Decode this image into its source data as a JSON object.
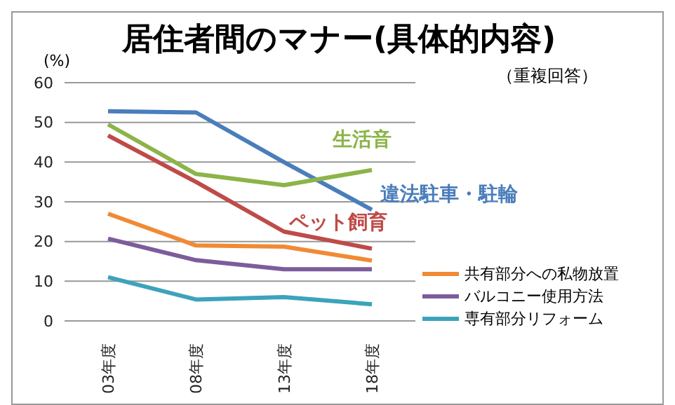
{
  "chart_data": {
    "type": "line",
    "title": "居住者間のマナー(具体的内容)",
    "subtitle": "（重複回答）",
    "ylabel": "(%)",
    "categories": [
      "03年度",
      "08年度",
      "13年度",
      "18年度"
    ],
    "series": [
      {
        "color": "#4a7ebb",
        "values": [
          52.8,
          52.5,
          40,
          28
        ]
      },
      {
        "color": "#8cb449",
        "values": [
          49.5,
          37,
          34.2,
          38
        ]
      },
      {
        "color": "#be4b48",
        "values": [
          46.7,
          35,
          22.5,
          18.2
        ]
      },
      {
        "name": "共有部分への私物放置",
        "color": "#f08a35",
        "values": [
          27,
          19,
          18.7,
          15.2
        ]
      },
      {
        "name": "バルコニー使用方法",
        "color": "#7d5c9c",
        "values": [
          20.7,
          15.3,
          13,
          13
        ]
      },
      {
        "name": "専有部分リフォーム",
        "color": "#3ca3bb",
        "values": [
          11,
          5.4,
          6,
          4.2
        ]
      }
    ],
    "annotations": [
      "違法駐車・駐輪",
      "生活音",
      "ペット飼育"
    ],
    "ylim": [
      0,
      60
    ],
    "yticks": [
      0,
      10,
      20,
      30,
      40,
      50,
      60
    ],
    "grid": "y",
    "legend": "bottom right",
    "marker": "none",
    "line_style": "solid"
  }
}
